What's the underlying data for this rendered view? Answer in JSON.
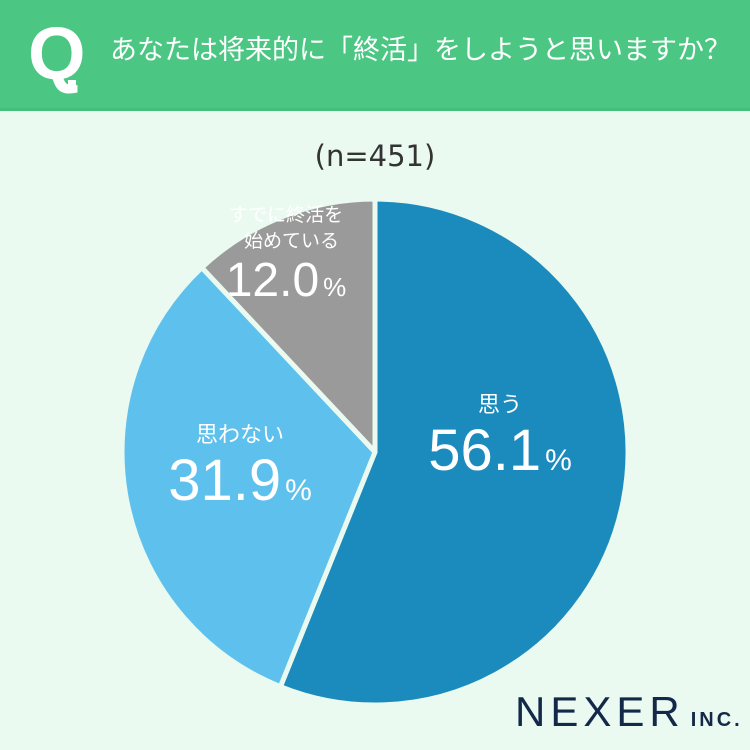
{
  "header": {
    "q_mark": "Q",
    "question": "あなたは将来的に「終活」をしようと思いますか？"
  },
  "sample": "(n=451)",
  "colors": {
    "header_bg": "#4bc783",
    "background": "#eafaf1",
    "slice_think": "#1b8bbd",
    "slice_not_think": "#5ec0ec",
    "slice_already": "#9a9a9a"
  },
  "labels": {
    "think": {
      "category": "思う",
      "value": "56.1",
      "unit": "%"
    },
    "not_think": {
      "category": "思わない",
      "value": "31.9",
      "unit": "%"
    },
    "already": {
      "category_line1": "すでに終活を",
      "category_line2": "始めている",
      "value": "12.0",
      "unit": "%"
    }
  },
  "logo": {
    "name": "NEXER",
    "suffix": "INC."
  },
  "chart_data": {
    "type": "pie",
    "title": "あなたは将来的に「終活」をしようと思いますか？",
    "subtitle": "(n=451)",
    "categories": [
      "思う",
      "思わない",
      "すでに終活を始めている"
    ],
    "values": [
      56.1,
      31.9,
      12.0
    ],
    "unit": "%",
    "colors": [
      "#1b8bbd",
      "#5ec0ec",
      "#9a9a9a"
    ],
    "start_angle": "top",
    "direction": "clockwise",
    "legend": "none (inline labels)"
  }
}
